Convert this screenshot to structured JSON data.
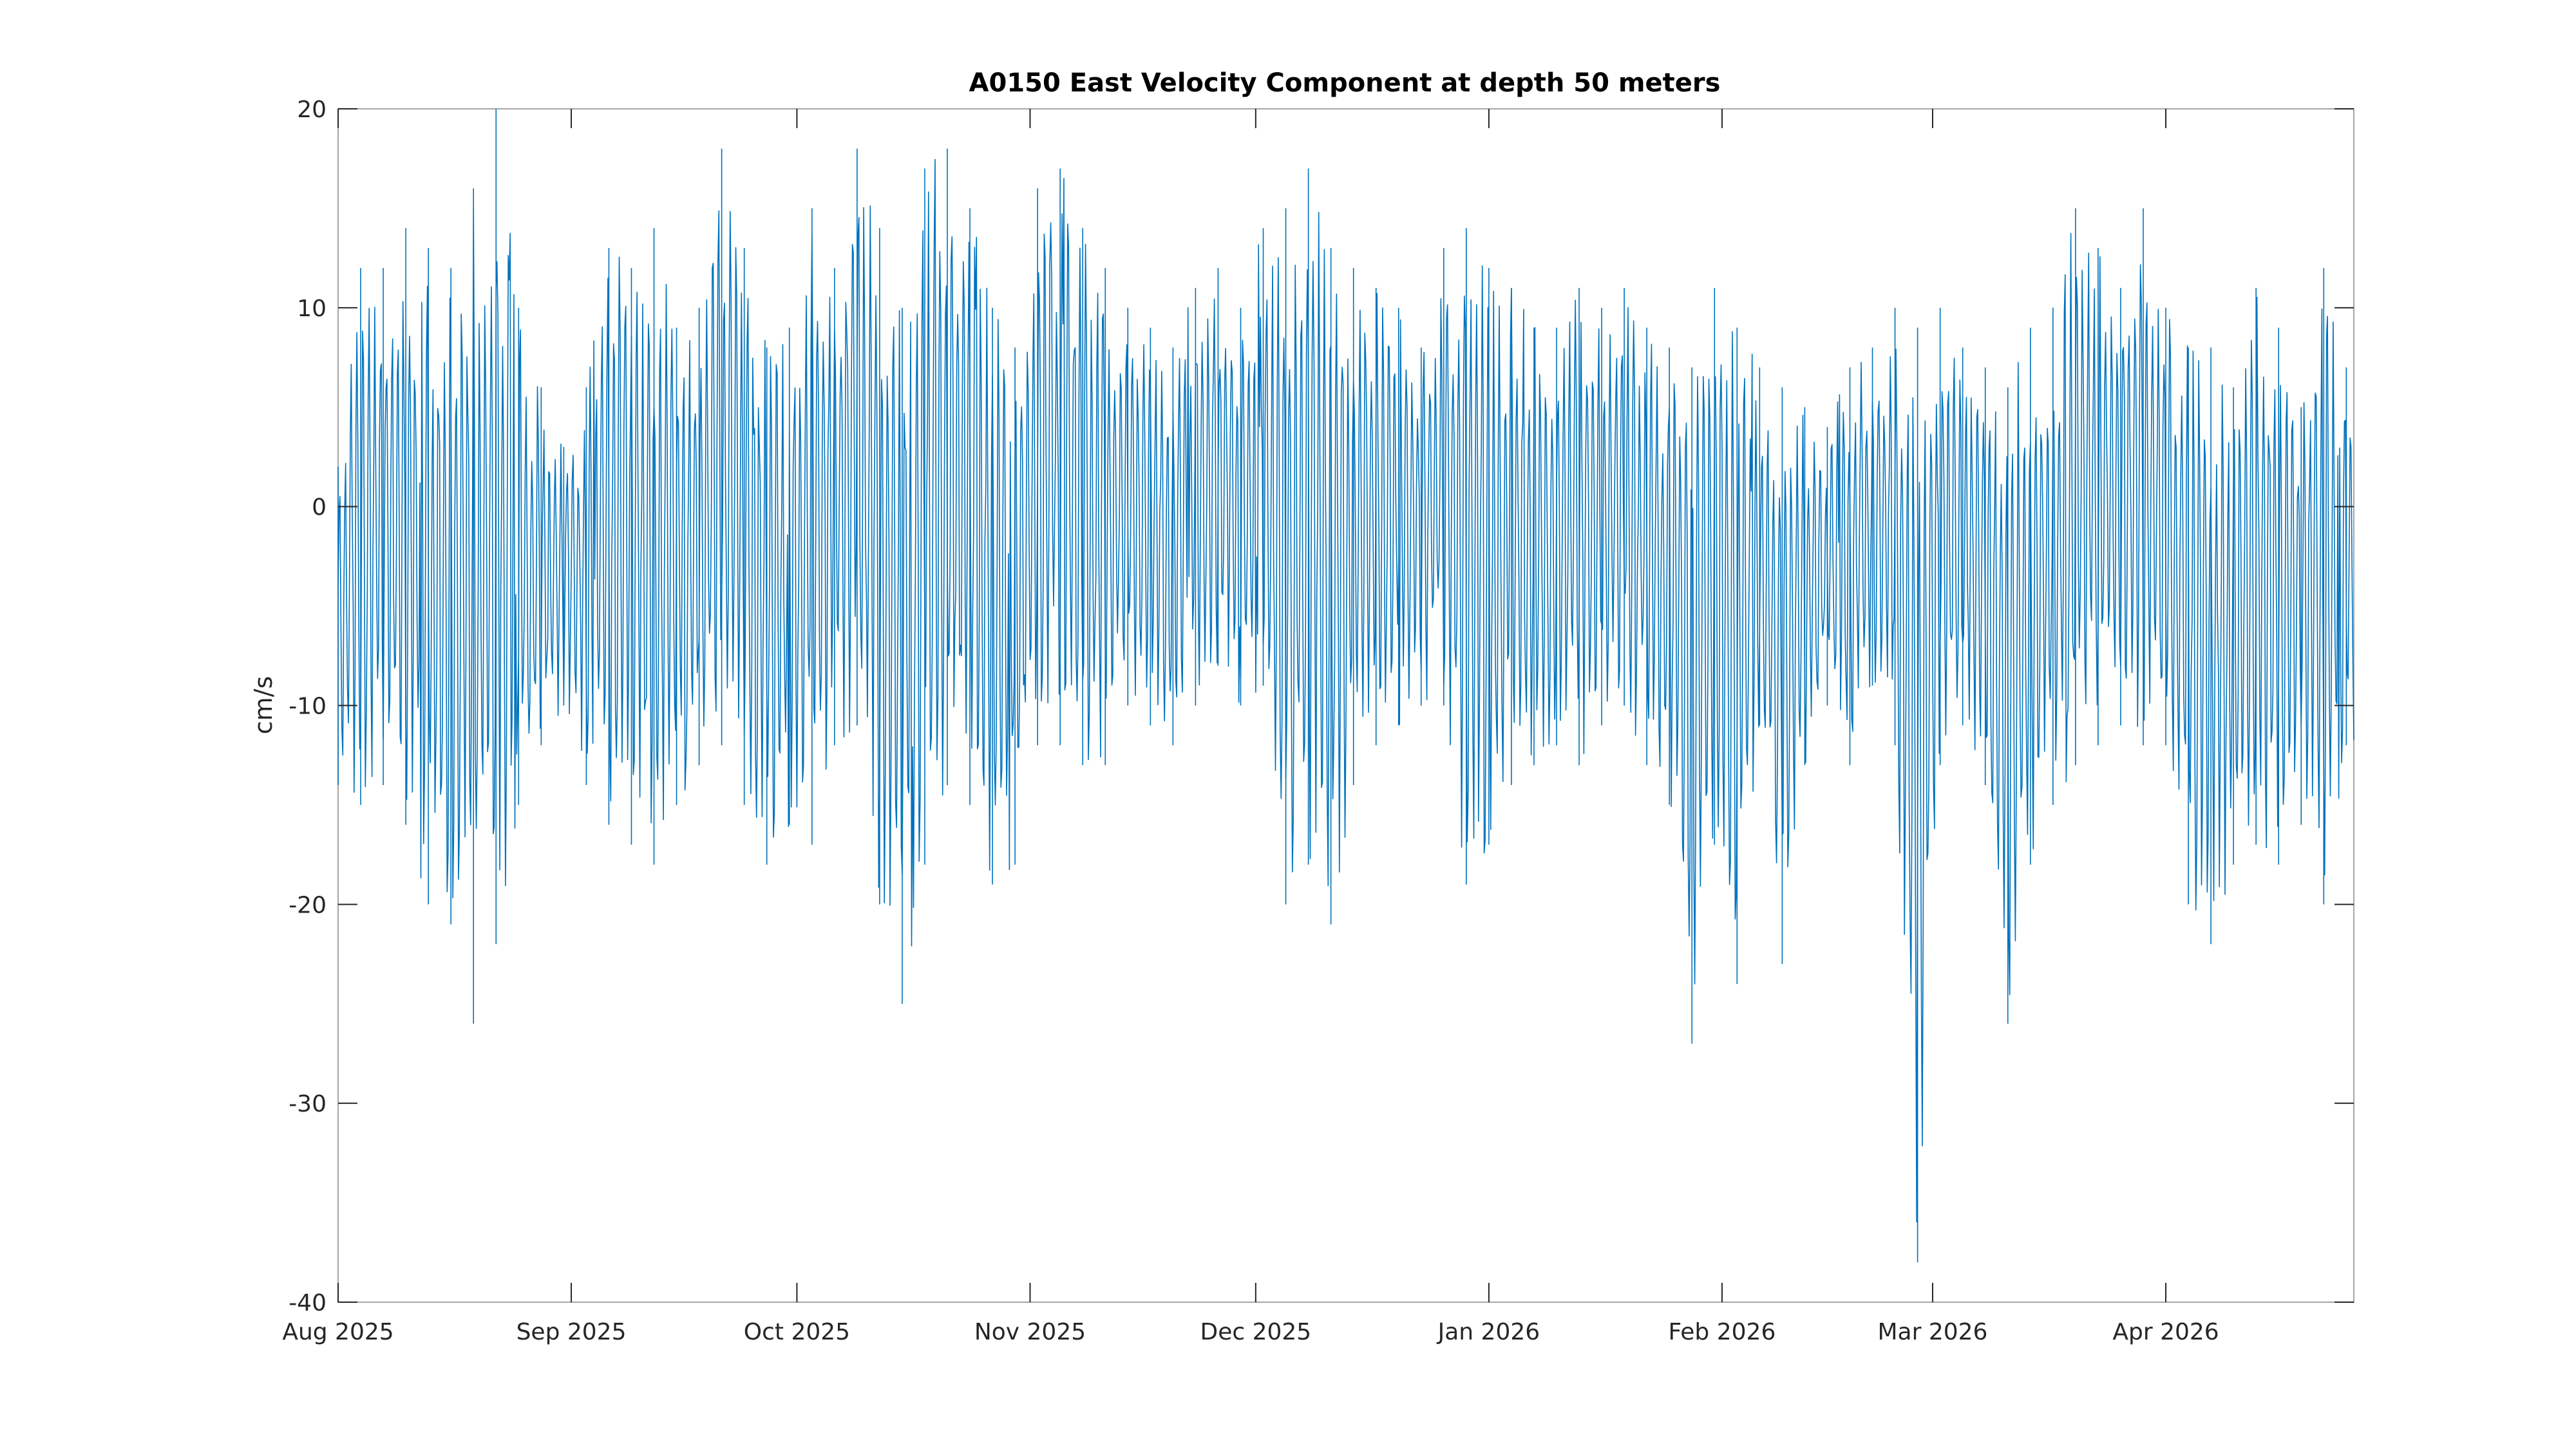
{
  "chart_data": {
    "type": "line",
    "title": "A0150 East Velocity Component at depth 50 meters",
    "xlabel": "",
    "ylabel": "cm/s",
    "ylim": [
      -40,
      20
    ],
    "yticks": [
      -40,
      -30,
      -20,
      -10,
      0,
      10,
      20
    ],
    "xlim": [
      "2025-08-01",
      "2026-04-26"
    ],
    "xticks": [
      {
        "date": "2025-08-01",
        "label": "Aug 2025"
      },
      {
        "date": "2025-09-01",
        "label": "Sep 2025"
      },
      {
        "date": "2025-10-01",
        "label": "Oct 2025"
      },
      {
        "date": "2025-11-01",
        "label": "Nov 2025"
      },
      {
        "date": "2025-12-01",
        "label": "Dec 2025"
      },
      {
        "date": "2026-01-01",
        "label": "Jan 2026"
      },
      {
        "date": "2026-02-01",
        "label": "Feb 2026"
      },
      {
        "date": "2026-03-01",
        "label": "Mar 2026"
      },
      {
        "date": "2026-04-01",
        "label": "Apr 2026"
      }
    ],
    "grid": false,
    "line_color": "#0072BD",
    "envelope_note": "Values read per day: approximate daily minimum and maximum of the hourly East velocity (cm/s)",
    "series": [
      {
        "name": "",
        "x": [
          "2025-08-01",
          "2025-08-04",
          "2025-08-07",
          "2025-08-10",
          "2025-08-13",
          "2025-08-16",
          "2025-08-19",
          "2025-08-22",
          "2025-08-25",
          "2025-08-28",
          "2025-08-31",
          "2025-09-03",
          "2025-09-06",
          "2025-09-09",
          "2025-09-12",
          "2025-09-15",
          "2025-09-18",
          "2025-09-21",
          "2025-09-24",
          "2025-09-27",
          "2025-09-30",
          "2025-10-03",
          "2025-10-06",
          "2025-10-09",
          "2025-10-12",
          "2025-10-15",
          "2025-10-18",
          "2025-10-21",
          "2025-10-24",
          "2025-10-27",
          "2025-10-30",
          "2025-11-02",
          "2025-11-05",
          "2025-11-08",
          "2025-11-11",
          "2025-11-14",
          "2025-11-17",
          "2025-11-20",
          "2025-11-23",
          "2025-11-26",
          "2025-11-29",
          "2025-12-02",
          "2025-12-05",
          "2025-12-08",
          "2025-12-11",
          "2025-12-14",
          "2025-12-17",
          "2025-12-20",
          "2025-12-23",
          "2025-12-26",
          "2025-12-29",
          "2026-01-01",
          "2026-01-04",
          "2026-01-07",
          "2026-01-10",
          "2026-01-13",
          "2026-01-16",
          "2026-01-19",
          "2026-01-22",
          "2026-01-25",
          "2026-01-28",
          "2026-01-31",
          "2026-02-03",
          "2026-02-06",
          "2026-02-09",
          "2026-02-12",
          "2026-02-15",
          "2026-02-18",
          "2026-02-21",
          "2026-02-24",
          "2026-02-27",
          "2026-03-02",
          "2026-03-05",
          "2026-03-08",
          "2026-03-11",
          "2026-03-14",
          "2026-03-17",
          "2026-03-20",
          "2026-03-23",
          "2026-03-26",
          "2026-03-29",
          "2026-04-01",
          "2026-04-04",
          "2026-04-07",
          "2026-04-10",
          "2026-04-13",
          "2026-04-16",
          "2026-04-19",
          "2026-04-22",
          "2026-04-25"
        ],
        "low": [
          -14,
          -15,
          -14,
          -16,
          -20,
          -21,
          -26,
          -22,
          -15,
          -12,
          -10,
          -14,
          -16,
          -17,
          -18,
          -15,
          -13,
          -12,
          -15,
          -18,
          -16,
          -17,
          -12,
          -11,
          -20,
          -25,
          -18,
          -14,
          -15,
          -19,
          -18,
          -12,
          -12,
          -13,
          -13,
          -10,
          -11,
          -12,
          -10,
          -8,
          -10,
          -9,
          -20,
          -18,
          -21,
          -14,
          -12,
          -11,
          -10,
          -10,
          -19,
          -17,
          -14,
          -13,
          -12,
          -13,
          -11,
          -10,
          -13,
          -15,
          -27,
          -17,
          -24,
          -11,
          -23,
          -13,
          -10,
          -13,
          -9,
          -12,
          -38,
          -13,
          -11,
          -14,
          -26,
          -18,
          -15,
          -13,
          -12,
          -11,
          -12,
          -12,
          -20,
          -22,
          -18,
          -17,
          -18,
          -16,
          -20,
          -12
        ],
        "high": [
          2,
          12,
          12,
          14,
          13,
          12,
          16,
          20,
          10,
          6,
          3,
          6,
          13,
          12,
          14,
          9,
          10,
          18,
          13,
          8,
          9,
          15,
          12,
          18,
          14,
          10,
          17,
          18,
          15,
          10,
          8,
          16,
          17,
          14,
          12,
          10,
          9,
          8,
          11,
          12,
          10,
          14,
          15,
          17,
          13,
          12,
          11,
          10,
          8,
          13,
          14,
          12,
          11,
          9,
          9,
          11,
          10,
          11,
          9,
          8,
          7,
          11,
          9,
          7,
          6,
          5,
          4,
          7,
          8,
          10,
          9,
          10,
          8,
          7,
          6,
          9,
          10,
          15,
          13,
          11,
          15,
          10,
          8,
          8,
          6,
          11,
          9,
          5,
          12,
          7
        ]
      }
    ]
  }
}
